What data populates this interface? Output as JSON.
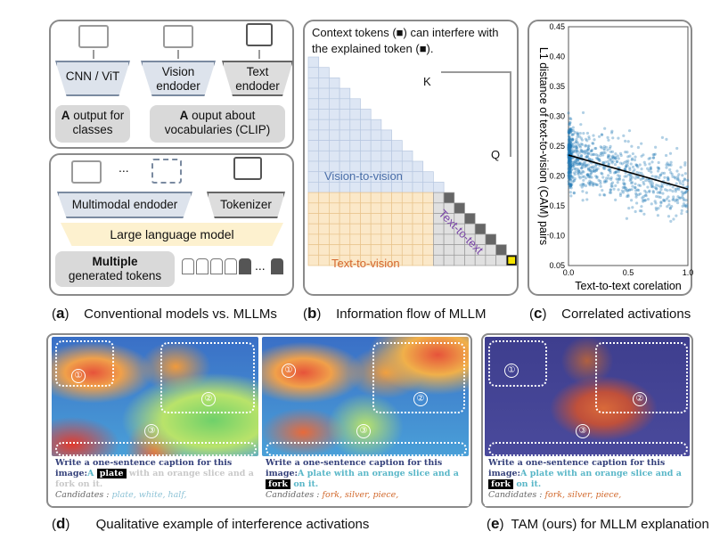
{
  "panel_a": {
    "cnn": "CNN / ViT",
    "vision_encoder": "Vision endoder",
    "text_encoder": "Text endoder",
    "output_classes_bold": "A",
    "output_classes": " output for classes",
    "output_clip_bold": "A",
    "output_clip": " ouput about vocabularies (CLIP)",
    "ellipsis": "...",
    "multimodal": "Multimodal endoder",
    "tokenizer": "Tokenizer",
    "llm": "Large language model",
    "multiple_bold": "Multiple",
    "multiple": "generated tokens",
    "dots": "..."
  },
  "panel_b": {
    "title": "Context tokens (■) can interfere with the explained token (■).",
    "k": "K",
    "q": "Q",
    "v2v": "Vision-to-vision",
    "t2t": "Text-to-text",
    "t2v": "Text-to-vision"
  },
  "chart_data": {
    "type": "scatter",
    "title": "",
    "xlabel": "Text-to-text corelation",
    "ylabel": "L1 distance of text-to-vision (CAM) pairs",
    "xlim": [
      0,
      1.0
    ],
    "ylim": [
      0.05,
      0.45
    ],
    "xticks": [
      "0.0",
      "0.5",
      "1.0"
    ],
    "yticks": [
      "0.05",
      "0.10",
      "0.15",
      "0.20",
      "0.25",
      "0.30",
      "0.35",
      "0.40",
      "0.45"
    ],
    "trend_line": {
      "x": [
        0.0,
        1.0
      ],
      "y": [
        0.235,
        0.178
      ]
    },
    "color": "#1f77b4"
  },
  "captions": {
    "a_letter": "a",
    "a_text": "Conventional models vs. MLLMs",
    "b_letter": "b",
    "b_text": "Information flow of MLLM",
    "c_letter": "c",
    "c_text": "Correlated activations",
    "d_letter": "d",
    "d_text": "Qualitative example of interference activations",
    "e_letter": "e",
    "e_text": "TAM (ours) for MLLM explanation"
  },
  "panel_d": {
    "left": {
      "prompt": "Write a one-sentence caption for this image:",
      "answer_pre": "A ",
      "highlight": "plate",
      "answer_post": " with an orange slice and a fork on it.",
      "candidates_label": "Candidates : ",
      "candidates": "plate, white, half,"
    },
    "right": {
      "prompt": "Write a one-sentence caption for this image:",
      "answer_pre": "A plate with an orange slice and a ",
      "highlight": "fork",
      "answer_post": " on it.",
      "candidates_label": "Candidates : ",
      "candidates": "fork, silver, piece,"
    }
  },
  "panel_e": {
    "prompt": "Write a one-sentence caption for this image:",
    "answer_pre": "A plate with an orange slice and a ",
    "highlight": "fork",
    "answer_post": " on it.",
    "candidates_label": "Candidates : ",
    "candidates": "fork, silver, piece,"
  },
  "regions": [
    "①",
    "②",
    "③"
  ]
}
